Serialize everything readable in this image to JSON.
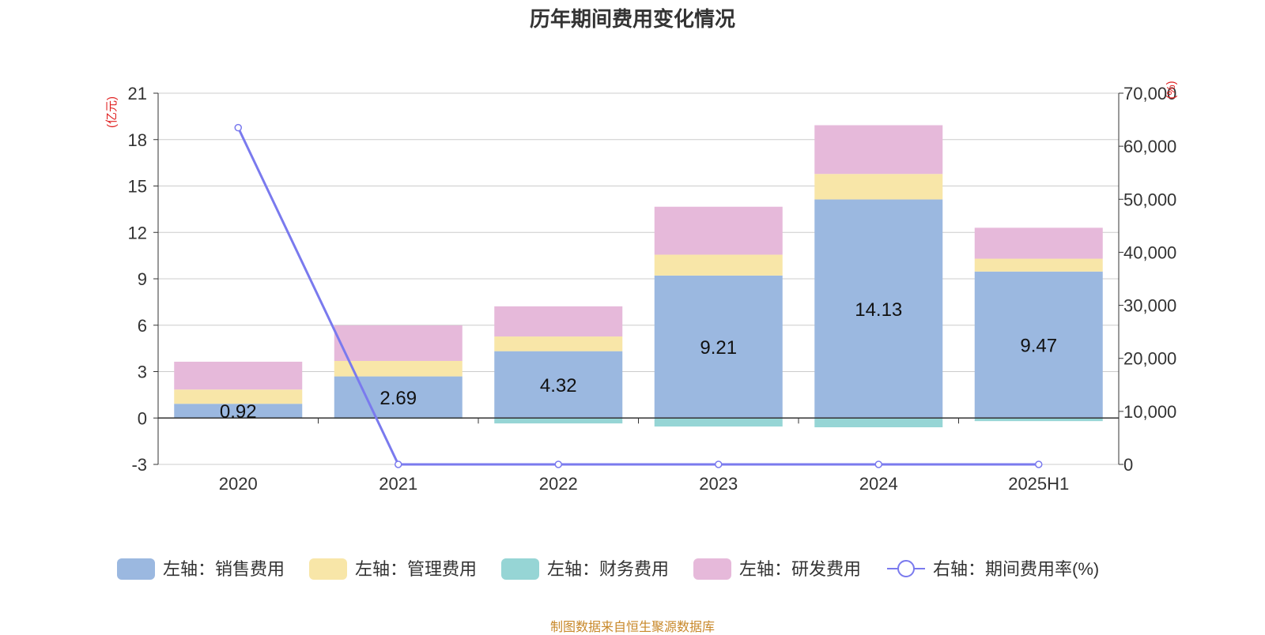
{
  "chart_data": {
    "type": "bar",
    "title": "历年期间费用变化情况",
    "categories": [
      "2020",
      "2021",
      "2022",
      "2023",
      "2024",
      "2025H1"
    ],
    "left_axis": {
      "unit": "(亿元)",
      "ylim": [
        -3,
        21
      ],
      "ticks": [
        -3,
        0,
        3,
        6,
        9,
        12,
        15,
        18,
        21
      ]
    },
    "right_axis": {
      "unit": "(%)",
      "ylim": [
        0,
        70000
      ],
      "ticks": [
        "0",
        "10,000",
        "20,000",
        "30,000",
        "40,000",
        "50,000",
        "60,000",
        "70,000"
      ],
      "tick_values": [
        0,
        10000,
        20000,
        30000,
        40000,
        50000,
        60000,
        70000
      ]
    },
    "series": [
      {
        "name": "左轴：销售费用",
        "axis": "left",
        "type": "bar",
        "color": "#9bb8e0",
        "values": [
          0.92,
          2.69,
          4.32,
          9.21,
          14.13,
          9.47
        ],
        "labels": [
          "0.92",
          "2.69",
          "4.32",
          "9.21",
          "14.13",
          "9.47"
        ]
      },
      {
        "name": "左轴：管理费用",
        "axis": "left",
        "type": "bar",
        "color": "#f8e6a8",
        "values": [
          0.92,
          1.0,
          0.95,
          1.35,
          1.65,
          0.83
        ]
      },
      {
        "name": "左轴：财务费用",
        "axis": "left",
        "type": "bar",
        "color": "#96d5d5",
        "values": [
          0.0,
          -0.05,
          -0.35,
          -0.55,
          -0.6,
          -0.2
        ]
      },
      {
        "name": "左轴：研发费用",
        "axis": "left",
        "type": "bar",
        "color": "#e6b9da",
        "values": [
          1.8,
          2.3,
          1.95,
          3.1,
          3.15,
          2.0
        ]
      },
      {
        "name": "右轴：期间费用率(%)",
        "axis": "right",
        "type": "line",
        "color": "#7a7aee",
        "values": [
          63500,
          0,
          0,
          0,
          0,
          0
        ]
      }
    ],
    "grid": true,
    "legend_position": "bottom"
  },
  "source_note": "制图数据来自恒生聚源数据库"
}
